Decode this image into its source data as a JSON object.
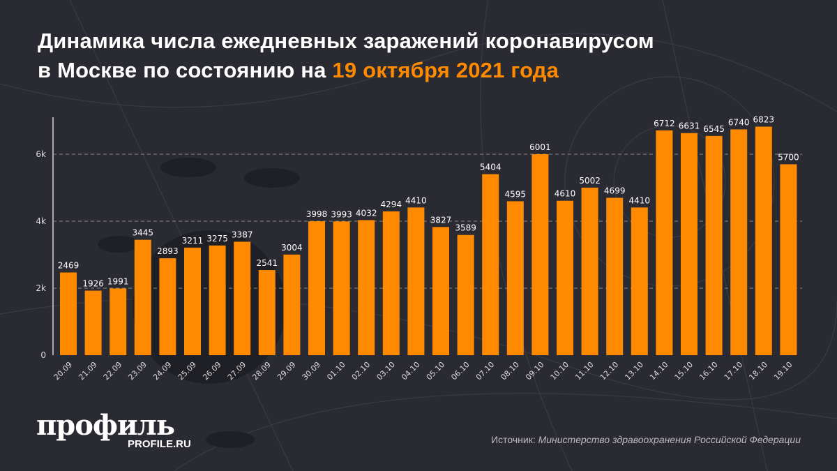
{
  "title": {
    "line1": "Динамика числа ежедневных заражений коронавирусом",
    "line2_prefix": "в Москве по состоянию на ",
    "line2_highlight": "19 октября 2021 года"
  },
  "colors": {
    "bar": "#ff8a00",
    "highlight": "#ff8a00",
    "background": "#2a2a33"
  },
  "chart_data": {
    "type": "bar",
    "categories": [
      "20.09",
      "21.09",
      "22.09",
      "23.09",
      "24.09",
      "25.09",
      "26.09",
      "27.09",
      "28.09",
      "29.09",
      "30.09",
      "01.10",
      "02.10",
      "03.10",
      "04.10",
      "05.10",
      "06.10",
      "07.10",
      "08.10",
      "09.10",
      "10.10",
      "11.10",
      "12.10",
      "13.10",
      "14.10",
      "15.10",
      "16.10",
      "17.10",
      "18.10",
      "19.10"
    ],
    "values": [
      2469,
      1926,
      1991,
      3445,
      2893,
      3211,
      3275,
      3387,
      2541,
      3004,
      3998,
      3993,
      4032,
      4294,
      4410,
      3827,
      3589,
      5404,
      4595,
      6001,
      4610,
      5002,
      4699,
      4410,
      6712,
      6631,
      6545,
      6740,
      6823,
      5700
    ],
    "yticks": [
      {
        "value": 0,
        "label": "0"
      },
      {
        "value": 2000,
        "label": "2k"
      },
      {
        "value": 4000,
        "label": "4k"
      },
      {
        "value": 6000,
        "label": "6k"
      }
    ],
    "ylim": [
      0,
      7000
    ],
    "grid": true,
    "data_labels": true
  },
  "logo": {
    "name": "профиль",
    "site": "PROFILE.RU"
  },
  "source": {
    "label": "Источник: ",
    "value": "Министерство здравоохранения Российской Федерации"
  }
}
